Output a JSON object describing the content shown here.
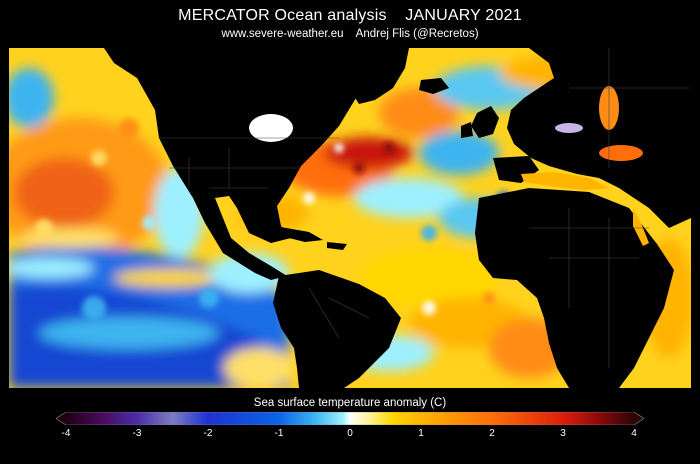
{
  "header": {
    "title": "MERCATOR Ocean analysis    JANUARY 2021",
    "subtitle": "www.severe-weather.eu    Andrej Flis (@Recretos)"
  },
  "legend": {
    "title": "Sea surface temperature anomaly (C)",
    "min": -4,
    "max": 4,
    "ticks": [
      "-4",
      "-3",
      "-2",
      "-1",
      "0",
      "1",
      "2",
      "3",
      "4"
    ],
    "stops": [
      {
        "value": -4.0,
        "color": "#1e0012"
      },
      {
        "value": -3.5,
        "color": "#4a0a5e"
      },
      {
        "value": -3.0,
        "color": "#4a2ca6"
      },
      {
        "value": -2.5,
        "color": "#7c7cc0"
      },
      {
        "value": -2.0,
        "color": "#1e32d2"
      },
      {
        "value": -1.0,
        "color": "#0a64e6"
      },
      {
        "value": -0.5,
        "color": "#3cb4f0"
      },
      {
        "value": -0.1,
        "color": "#9ef0ff"
      },
      {
        "value": 0.0,
        "color": "#ffffff"
      },
      {
        "value": 0.3,
        "color": "#fff08c"
      },
      {
        "value": 0.6,
        "color": "#ffd700"
      },
      {
        "value": 1.0,
        "color": "#ffb400"
      },
      {
        "value": 2.0,
        "color": "#ff6e0a"
      },
      {
        "value": 3.0,
        "color": "#dc1e0a"
      },
      {
        "value": 3.5,
        "color": "#8c0a0a"
      },
      {
        "value": 4.0,
        "color": "#2a0505"
      }
    ]
  }
}
